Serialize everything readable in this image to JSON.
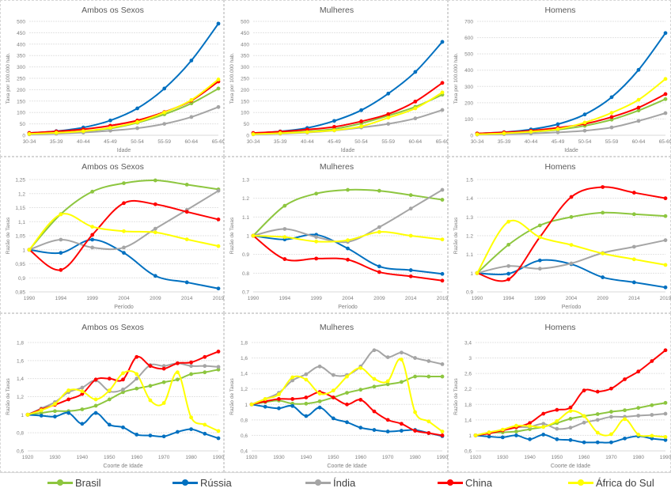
{
  "legend": {
    "items": [
      {
        "name": "Brasil",
        "color": "#8DC63F"
      },
      {
        "name": "Rússia",
        "color": "#0070C0"
      },
      {
        "name": "Índia",
        "color": "#A5A5A5"
      },
      {
        "name": "China",
        "color": "#FF0000"
      },
      {
        "name": "África do Sul",
        "color": "#FFFF00"
      }
    ]
  },
  "chart_data": [
    {
      "type": "line",
      "title": "Ambos os Sexos",
      "xlabel": "Idade",
      "ylabel": "Taxa por 100.000 hab.",
      "categories": [
        "30-34",
        "35-39",
        "40-44",
        "45-49",
        "50-54",
        "55-59",
        "60-64",
        "65-69"
      ],
      "ylim": [
        0,
        500
      ],
      "yticks": [
        "0",
        "50",
        "100",
        "150",
        "200",
        "250",
        "300",
        "350",
        "400",
        "450",
        "500"
      ],
      "ytick_values": [
        0,
        50,
        100,
        150,
        200,
        250,
        300,
        350,
        400,
        450,
        500
      ],
      "grid": true,
      "series": [
        {
          "name": "Brasil",
          "values": [
            6,
            11,
            18,
            30,
            55,
            92,
            140,
            205
          ]
        },
        {
          "name": "Rússia",
          "values": [
            10,
            18,
            34,
            65,
            118,
            205,
            328,
            490
          ]
        },
        {
          "name": "Índia",
          "values": [
            4,
            7,
            12,
            20,
            31,
            50,
            80,
            124
          ]
        },
        {
          "name": "China",
          "values": [
            10,
            17,
            26,
            42,
            65,
            102,
            152,
            236
          ]
        },
        {
          "name": "África do Sul",
          "values": [
            6,
            11,
            18,
            33,
            58,
            100,
            155,
            245
          ]
        }
      ]
    },
    {
      "type": "line",
      "title": "Mulheres",
      "xlabel": "Idade",
      "ylabel": "Taxa por 100.000 hab.",
      "categories": [
        "30-34",
        "35-39",
        "40-44",
        "45-49",
        "50-54",
        "55-59",
        "60-64",
        "65-69"
      ],
      "ylim": [
        0,
        500
      ],
      "yticks": [
        "0",
        "50",
        "100",
        "150",
        "200",
        "250",
        "300",
        "350",
        "400",
        "450",
        "500"
      ],
      "ytick_values": [
        0,
        50,
        100,
        150,
        200,
        250,
        300,
        350,
        400,
        450,
        500
      ],
      "grid": true,
      "series": [
        {
          "name": "Brasil",
          "values": [
            5,
            10,
            17,
            28,
            52,
            86,
            125,
            178
          ]
        },
        {
          "name": "Rússia",
          "values": [
            9,
            17,
            32,
            63,
            110,
            183,
            278,
            410
          ]
        },
        {
          "name": "Índia",
          "values": [
            4,
            7,
            12,
            21,
            34,
            50,
            74,
            111
          ]
        },
        {
          "name": "China",
          "values": [
            10,
            16,
            25,
            37,
            61,
            93,
            148,
            230
          ]
        },
        {
          "name": "África do Sul",
          "values": [
            5,
            9,
            14,
            22,
            39,
            77,
            118,
            188
          ]
        }
      ]
    },
    {
      "type": "line",
      "title": "Homens",
      "xlabel": "Idade",
      "ylabel": "Taxa por 100.000 hab.",
      "categories": [
        "30-34",
        "35-39",
        "40-44",
        "45-49",
        "50-54",
        "55-59",
        "60-64",
        "65-69"
      ],
      "ylim": [
        0,
        700
      ],
      "yticks": [
        "0",
        "100",
        "200",
        "300",
        "400",
        "500",
        "600",
        "700"
      ],
      "ytick_values": [
        0,
        100,
        200,
        300,
        400,
        500,
        600,
        700
      ],
      "grid": true,
      "series": [
        {
          "name": "Brasil",
          "values": [
            6,
            12,
            20,
            34,
            58,
            96,
            152,
            222
          ]
        },
        {
          "name": "Rússia",
          "values": [
            11,
            19,
            36,
            68,
            128,
            234,
            402,
            628
          ]
        },
        {
          "name": "Índia",
          "values": [
            4,
            7,
            11,
            18,
            28,
            48,
            88,
            136
          ]
        },
        {
          "name": "China",
          "values": [
            11,
            18,
            28,
            46,
            70,
            112,
            170,
            253
          ]
        },
        {
          "name": "África do Sul",
          "values": [
            6,
            12,
            22,
            38,
            78,
            138,
            218,
            346
          ]
        }
      ]
    },
    {
      "type": "line",
      "title": "Ambos os Sexos",
      "xlabel": "Período",
      "ylabel": "Razão de Taxas",
      "categories": [
        "1990",
        "1994",
        "1999",
        "2004",
        "2009",
        "2014",
        "2019"
      ],
      "ylim": [
        0.85,
        1.25
      ],
      "yticks": [
        "0,85",
        "0,9",
        "0,95",
        "1",
        "1,05",
        "1,1",
        "1,15",
        "1,2",
        "1,25"
      ],
      "ytick_values": [
        0.85,
        0.9,
        0.95,
        1,
        1.05,
        1.1,
        1.15,
        1.2,
        1.25
      ],
      "grid": true,
      "series": [
        {
          "name": "Brasil",
          "values": [
            1.0,
            1.127,
            1.207,
            1.237,
            1.247,
            1.232,
            1.215
          ]
        },
        {
          "name": "Rússia",
          "values": [
            1.0,
            0.989,
            1.036,
            0.989,
            0.907,
            0.884,
            0.862
          ]
        },
        {
          "name": "Índia",
          "values": [
            1.0,
            1.036,
            1.008,
            1.008,
            1.075,
            1.142,
            1.21
          ]
        },
        {
          "name": "China",
          "values": [
            1.0,
            0.928,
            1.053,
            1.166,
            1.162,
            1.135,
            1.108
          ]
        },
        {
          "name": "África do Sul",
          "values": [
            1.0,
            1.126,
            1.082,
            1.066,
            1.062,
            1.037,
            1.013
          ]
        }
      ]
    },
    {
      "type": "line",
      "title": "Mulheres",
      "xlabel": "Período",
      "ylabel": "Razão de Taxas",
      "categories": [
        "1990",
        "1994",
        "1999",
        "2004",
        "2009",
        "2014",
        "2019"
      ],
      "ylim": [
        0.7,
        1.3
      ],
      "yticks": [
        "0.7",
        "0.8",
        "0.9",
        "1",
        "1.1",
        "1.2",
        "1.3"
      ],
      "ytick_values": [
        0.7,
        0.8,
        0.9,
        1,
        1.1,
        1.2,
        1.3
      ],
      "grid": true,
      "series": [
        {
          "name": "Brasil",
          "values": [
            1.0,
            1.16,
            1.225,
            1.245,
            1.24,
            1.217,
            1.192
          ]
        },
        {
          "name": "Rússia",
          "values": [
            1.0,
            0.98,
            1.005,
            0.932,
            0.836,
            0.816,
            0.796
          ]
        },
        {
          "name": "Índia",
          "values": [
            1.0,
            1.036,
            0.993,
            0.967,
            1.046,
            1.145,
            1.245
          ]
        },
        {
          "name": "China",
          "values": [
            1.0,
            0.875,
            0.878,
            0.872,
            0.806,
            0.783,
            0.76
          ]
        },
        {
          "name": "África do Sul",
          "values": [
            1.0,
            0.993,
            0.969,
            0.976,
            1.02,
            1.0,
            0.98
          ]
        }
      ]
    },
    {
      "type": "line",
      "title": "Homens",
      "xlabel": "Período",
      "ylabel": "Razão de Taxas",
      "categories": [
        "1990",
        "1994",
        "1999",
        "2004",
        "2009",
        "2014",
        "2019"
      ],
      "ylim": [
        0.9,
        1.5
      ],
      "yticks": [
        "0.9",
        "1",
        "1.1",
        "1.2",
        "1.3",
        "1.4",
        "1.5"
      ],
      "ytick_values": [
        0.9,
        1,
        1.1,
        1.2,
        1.3,
        1.4,
        1.5
      ],
      "grid": true,
      "series": [
        {
          "name": "Brasil",
          "values": [
            1.0,
            1.152,
            1.255,
            1.3,
            1.323,
            1.315,
            1.305
          ]
        },
        {
          "name": "Rússia",
          "values": [
            1.0,
            0.997,
            1.068,
            1.048,
            0.978,
            0.951,
            0.924
          ]
        },
        {
          "name": "Índia",
          "values": [
            1.0,
            1.038,
            1.024,
            1.052,
            1.108,
            1.141,
            1.176
          ]
        },
        {
          "name": "China",
          "values": [
            1.0,
            0.967,
            1.193,
            1.407,
            1.46,
            1.43,
            1.4
          ]
        },
        {
          "name": "África do Sul",
          "values": [
            1.0,
            1.275,
            1.192,
            1.151,
            1.105,
            1.074,
            1.044
          ]
        }
      ]
    },
    {
      "type": "line",
      "title": "Ambos os Sexos",
      "xlabel": "Coorte de Idade",
      "ylabel": "Razão de Taxas",
      "x": [
        1920,
        1925,
        1930,
        1935,
        1940,
        1945,
        1950,
        1955,
        1960,
        1965,
        1970,
        1975,
        1980,
        1985,
        1990
      ],
      "xticks": [
        "1920",
        "1930",
        "1940",
        "1950",
        "1960",
        "1970",
        "1980",
        "1990"
      ],
      "xtick_values": [
        1920,
        1930,
        1940,
        1950,
        1960,
        1970,
        1980,
        1990
      ],
      "ylim": [
        0.6,
        1.8
      ],
      "yticks": [
        "0,6",
        "0,8",
        "1",
        "1,2",
        "1,4",
        "1,6",
        "1,8"
      ],
      "ytick_values": [
        0.6,
        0.8,
        1,
        1.2,
        1.4,
        1.6,
        1.8
      ],
      "grid": true,
      "series": [
        {
          "name": "Brasil",
          "values": [
            1.0,
            1.02,
            1.04,
            1.04,
            1.06,
            1.1,
            1.17,
            1.25,
            1.29,
            1.32,
            1.36,
            1.39,
            1.45,
            1.47,
            1.5
          ]
        },
        {
          "name": "Rússia",
          "values": [
            1.0,
            0.99,
            0.98,
            1.02,
            0.9,
            1.02,
            0.89,
            0.86,
            0.78,
            0.77,
            0.76,
            0.81,
            0.84,
            0.79,
            0.74
          ]
        },
        {
          "name": "Índia",
          "values": [
            1.0,
            1.07,
            1.14,
            1.25,
            1.3,
            1.38,
            1.26,
            1.28,
            1.4,
            1.55,
            1.54,
            1.57,
            1.54,
            1.54,
            1.53
          ]
        },
        {
          "name": "China",
          "values": [
            1.0,
            1.06,
            1.11,
            1.17,
            1.23,
            1.39,
            1.4,
            1.39,
            1.64,
            1.54,
            1.51,
            1.57,
            1.58,
            1.64,
            1.7
          ]
        },
        {
          "name": "África do Sul",
          "values": [
            1.0,
            1.05,
            1.12,
            1.27,
            1.26,
            1.17,
            1.27,
            1.46,
            1.45,
            1.16,
            1.13,
            1.47,
            0.97,
            0.89,
            0.82
          ]
        }
      ]
    },
    {
      "type": "line",
      "title": "Mulheres",
      "xlabel": "Coorte de Idade",
      "ylabel": "Razão de Taxas",
      "x": [
        1920,
        1925,
        1930,
        1935,
        1940,
        1945,
        1950,
        1955,
        1960,
        1965,
        1970,
        1975,
        1980,
        1985,
        1990
      ],
      "xticks": [
        "1920",
        "1930",
        "1940",
        "1950",
        "1960",
        "1970",
        "1980",
        "1990"
      ],
      "xtick_values": [
        1920,
        1930,
        1940,
        1950,
        1960,
        1970,
        1980,
        1990
      ],
      "ylim": [
        0.4,
        1.8
      ],
      "yticks": [
        "0,4",
        "0,6",
        "0,8",
        "1",
        "1,2",
        "1,4",
        "1,6",
        "1,8"
      ],
      "ytick_values": [
        0.4,
        0.6,
        0.8,
        1,
        1.2,
        1.4,
        1.6,
        1.8
      ],
      "grid": true,
      "series": [
        {
          "name": "Brasil",
          "values": [
            1.0,
            1.03,
            1.05,
            1.01,
            1.01,
            1.04,
            1.09,
            1.15,
            1.19,
            1.23,
            1.26,
            1.29,
            1.36,
            1.36,
            1.36
          ]
        },
        {
          "name": "Rússia",
          "values": [
            1.0,
            0.97,
            0.95,
            0.98,
            0.85,
            0.96,
            0.82,
            0.77,
            0.7,
            0.67,
            0.65,
            0.66,
            0.67,
            0.63,
            0.59
          ]
        },
        {
          "name": "Índia",
          "values": [
            1.0,
            1.07,
            1.15,
            1.31,
            1.39,
            1.49,
            1.38,
            1.38,
            1.49,
            1.7,
            1.61,
            1.67,
            1.6,
            1.56,
            1.52
          ]
        },
        {
          "name": "China",
          "values": [
            1.0,
            1.04,
            1.07,
            1.07,
            1.09,
            1.16,
            1.09,
            1.0,
            1.06,
            0.91,
            0.8,
            0.75,
            0.66,
            0.63,
            0.6
          ]
        },
        {
          "name": "África do Sul",
          "values": [
            1.0,
            1.07,
            1.13,
            1.35,
            1.32,
            1.14,
            1.18,
            1.36,
            1.47,
            1.33,
            1.3,
            1.58,
            0.9,
            0.78,
            0.65
          ]
        }
      ]
    },
    {
      "type": "line",
      "title": "Homens",
      "xlabel": "Coorte de Idade",
      "ylabel": "Razão de Taxas",
      "x": [
        1920,
        1925,
        1930,
        1935,
        1940,
        1945,
        1950,
        1955,
        1960,
        1965,
        1970,
        1975,
        1980,
        1985,
        1990
      ],
      "xticks": [
        "1920",
        "1930",
        "1940",
        "1950",
        "1960",
        "1970",
        "1980",
        "1990"
      ],
      "xtick_values": [
        1920,
        1930,
        1940,
        1950,
        1960,
        1970,
        1980,
        1990
      ],
      "ylim": [
        0.6,
        3.4
      ],
      "yticks": [
        "0,6",
        "1",
        "1,4",
        "1,8",
        "2,2",
        "2,6",
        "3",
        "3,4"
      ],
      "ytick_values": [
        0.6,
        1,
        1.4,
        1.8,
        2.2,
        2.6,
        3,
        3.4
      ],
      "grid": true,
      "series": [
        {
          "name": "Brasil",
          "values": [
            1.0,
            1.06,
            1.08,
            1.1,
            1.16,
            1.22,
            1.32,
            1.43,
            1.5,
            1.55,
            1.61,
            1.65,
            1.71,
            1.78,
            1.84
          ]
        },
        {
          "name": "Rússia",
          "values": [
            1.0,
            0.97,
            0.95,
            1.0,
            0.9,
            1.02,
            0.9,
            0.88,
            0.82,
            0.82,
            0.82,
            0.92,
            0.98,
            0.92,
            0.88
          ]
        },
        {
          "name": "Índia",
          "values": [
            1.0,
            1.07,
            1.14,
            1.21,
            1.22,
            1.3,
            1.17,
            1.2,
            1.33,
            1.4,
            1.48,
            1.48,
            1.51,
            1.53,
            1.56
          ]
        },
        {
          "name": "China",
          "values": [
            1.0,
            1.05,
            1.13,
            1.21,
            1.32,
            1.56,
            1.66,
            1.72,
            2.16,
            2.13,
            2.21,
            2.45,
            2.65,
            2.92,
            3.2
          ]
        },
        {
          "name": "África do Sul",
          "values": [
            1.0,
            1.08,
            1.15,
            1.25,
            1.24,
            1.22,
            1.37,
            1.63,
            1.5,
            1.07,
            1.03,
            1.42,
            1.02,
            0.99,
            0.96
          ]
        }
      ]
    }
  ]
}
